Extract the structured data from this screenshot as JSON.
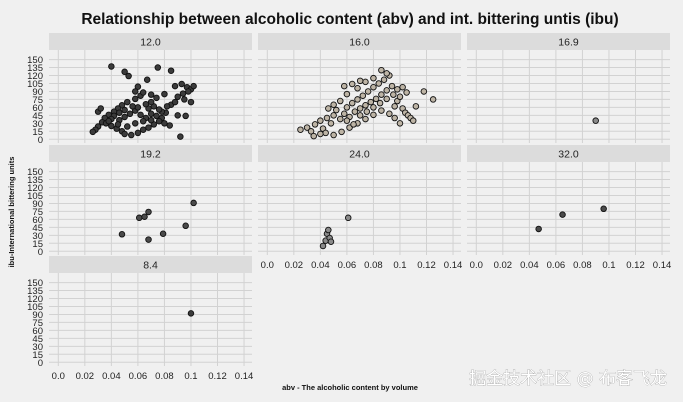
{
  "watermark": "掘金技术社区 @ 布客飞龙",
  "chart_data": {
    "type": "scatter",
    "title": "Relationship between alcoholic content (abv) and int. bittering untis (ibu)",
    "xlabel": "abv - The alcoholic content by volume",
    "ylabel": "ibu-International bittering units",
    "xlim": [
      -0.007,
      0.146
    ],
    "ylim": [
      -7,
      168
    ],
    "xticks": [
      0.0,
      0.02,
      0.04,
      0.06,
      0.08,
      0.1,
      0.12,
      0.14
    ],
    "xtick_labels": [
      "0.0",
      "0.02",
      "0.04",
      "0.06",
      "0.08",
      "0.1",
      "0.12",
      "0.14"
    ],
    "yticks": [
      0,
      15,
      30,
      45,
      60,
      75,
      90,
      105,
      120,
      135,
      150
    ],
    "ytick_labels": [
      "0",
      "15",
      "30",
      "45",
      "60",
      "75",
      "90",
      "105",
      "120",
      "135",
      "150"
    ],
    "grid": true,
    "facets": [
      {
        "label": "12.0",
        "color": "#3b3b3b",
        "points": [
          [
            0.04,
            137
          ],
          [
            0.05,
            127
          ],
          [
            0.053,
            119
          ],
          [
            0.06,
            99
          ],
          [
            0.067,
            112
          ],
          [
            0.075,
            135
          ],
          [
            0.085,
            129
          ],
          [
            0.088,
            100
          ],
          [
            0.093,
            104
          ],
          [
            0.097,
            98
          ],
          [
            0.1,
            94
          ],
          [
            0.102,
            100
          ],
          [
            0.08,
            85
          ],
          [
            0.09,
            80
          ],
          [
            0.095,
            75
          ],
          [
            0.1,
            70
          ],
          [
            0.085,
            65
          ],
          [
            0.09,
            45
          ],
          [
            0.096,
            44
          ],
          [
            0.092,
            5
          ],
          [
            0.081,
            50
          ],
          [
            0.078,
            40
          ],
          [
            0.072,
            62
          ],
          [
            0.068,
            58
          ],
          [
            0.062,
            82
          ],
          [
            0.058,
            76
          ],
          [
            0.052,
            70
          ],
          [
            0.048,
            64
          ],
          [
            0.045,
            58
          ],
          [
            0.042,
            52
          ],
          [
            0.038,
            46
          ],
          [
            0.035,
            40
          ],
          [
            0.033,
            32
          ],
          [
            0.03,
            24
          ],
          [
            0.028,
            18
          ],
          [
            0.026,
            14
          ],
          [
            0.03,
            52
          ],
          [
            0.032,
            58
          ],
          [
            0.036,
            30
          ],
          [
            0.04,
            25
          ],
          [
            0.044,
            20
          ],
          [
            0.048,
            15
          ],
          [
            0.05,
            10
          ],
          [
            0.055,
            8
          ],
          [
            0.06,
            12
          ],
          [
            0.064,
            18
          ],
          [
            0.068,
            22
          ],
          [
            0.072,
            28
          ],
          [
            0.076,
            34
          ],
          [
            0.08,
            30
          ],
          [
            0.084,
            26
          ],
          [
            0.046,
            36
          ],
          [
            0.05,
            42
          ],
          [
            0.054,
            48
          ],
          [
            0.058,
            54
          ],
          [
            0.062,
            46
          ],
          [
            0.066,
            40
          ],
          [
            0.07,
            36
          ],
          [
            0.074,
            44
          ],
          [
            0.078,
            52
          ],
          [
            0.07,
            70
          ],
          [
            0.074,
            78
          ],
          [
            0.066,
            66
          ],
          [
            0.06,
            60
          ],
          [
            0.056,
            62
          ],
          [
            0.05,
            55
          ],
          [
            0.046,
            50
          ],
          [
            0.042,
            44
          ],
          [
            0.04,
            38
          ],
          [
            0.038,
            34
          ],
          [
            0.045,
            28
          ],
          [
            0.052,
            24
          ],
          [
            0.058,
            30
          ],
          [
            0.064,
            34
          ],
          [
            0.07,
            48
          ],
          [
            0.076,
            56
          ],
          [
            0.082,
            62
          ],
          [
            0.088,
            70
          ],
          [
            0.094,
            86
          ],
          [
            0.098,
            90
          ],
          [
            0.058,
            90
          ],
          [
            0.064,
            88
          ],
          [
            0.07,
            84
          ]
        ]
      },
      {
        "label": "16.0",
        "color": "#bdb4a5",
        "points": [
          [
            0.025,
            18
          ],
          [
            0.03,
            22
          ],
          [
            0.033,
            15
          ],
          [
            0.036,
            28
          ],
          [
            0.04,
            35
          ],
          [
            0.042,
            20
          ],
          [
            0.045,
            40
          ],
          [
            0.048,
            30
          ],
          [
            0.05,
            45
          ],
          [
            0.052,
            55
          ],
          [
            0.055,
            38
          ],
          [
            0.058,
            48
          ],
          [
            0.06,
            60
          ],
          [
            0.062,
            42
          ],
          [
            0.064,
            68
          ],
          [
            0.066,
            52
          ],
          [
            0.068,
            75
          ],
          [
            0.07,
            58
          ],
          [
            0.072,
            82
          ],
          [
            0.074,
            64
          ],
          [
            0.076,
            90
          ],
          [
            0.078,
            70
          ],
          [
            0.08,
            98
          ],
          [
            0.082,
            76
          ],
          [
            0.084,
            105
          ],
          [
            0.086,
            84
          ],
          [
            0.088,
            112
          ],
          [
            0.09,
            92
          ],
          [
            0.092,
            120
          ],
          [
            0.094,
            100
          ],
          [
            0.096,
            62
          ],
          [
            0.098,
            72
          ],
          [
            0.1,
            80
          ],
          [
            0.102,
            58
          ],
          [
            0.104,
            50
          ],
          [
            0.106,
            45
          ],
          [
            0.108,
            40
          ],
          [
            0.11,
            35
          ],
          [
            0.112,
            62
          ],
          [
            0.118,
            90
          ],
          [
            0.125,
            75
          ],
          [
            0.086,
            130
          ],
          [
            0.09,
            124
          ],
          [
            0.08,
            115
          ],
          [
            0.074,
            108
          ],
          [
            0.068,
            96
          ],
          [
            0.06,
            85
          ],
          [
            0.055,
            72
          ],
          [
            0.05,
            65
          ],
          [
            0.046,
            58
          ],
          [
            0.044,
            12
          ],
          [
            0.05,
            8
          ],
          [
            0.056,
            14
          ],
          [
            0.062,
            22
          ],
          [
            0.068,
            30
          ],
          [
            0.074,
            38
          ],
          [
            0.08,
            46
          ],
          [
            0.086,
            54
          ],
          [
            0.092,
            48
          ],
          [
            0.096,
            40
          ],
          [
            0.1,
            30
          ],
          [
            0.06,
            35
          ],
          [
            0.065,
            28
          ],
          [
            0.07,
            45
          ],
          [
            0.075,
            52
          ],
          [
            0.08,
            60
          ],
          [
            0.085,
            68
          ],
          [
            0.09,
            76
          ],
          [
            0.095,
            84
          ],
          [
            0.098,
            94
          ],
          [
            0.102,
            98
          ],
          [
            0.105,
            88
          ],
          [
            0.04,
            10
          ],
          [
            0.035,
            6
          ],
          [
            0.058,
            100
          ],
          [
            0.064,
            104
          ],
          [
            0.07,
            110
          ]
        ]
      },
      {
        "label": "16.9",
        "color": "#8a8a8a",
        "points": [
          [
            0.09,
            35
          ]
        ]
      },
      {
        "label": "19.2",
        "color": "#4a4a4a",
        "points": [
          [
            0.048,
            32
          ],
          [
            0.061,
            63
          ],
          [
            0.065,
            65
          ],
          [
            0.068,
            74
          ],
          [
            0.068,
            22
          ],
          [
            0.079,
            33
          ],
          [
            0.096,
            48
          ],
          [
            0.102,
            91
          ]
        ]
      },
      {
        "label": "24.0",
        "color": "#8a8a8a",
        "points": [
          [
            0.042,
            10
          ],
          [
            0.044,
            20
          ],
          [
            0.045,
            33
          ],
          [
            0.046,
            40
          ],
          [
            0.047,
            25
          ],
          [
            0.048,
            18
          ],
          [
            0.061,
            63
          ]
        ]
      },
      {
        "label": "32.0",
        "color": "#4a4a4a",
        "points": [
          [
            0.047,
            42
          ],
          [
            0.065,
            69
          ],
          [
            0.096,
            80
          ]
        ]
      },
      {
        "label": "8.4",
        "color": "#3b3b3b",
        "points": [
          [
            0.1,
            92
          ]
        ]
      }
    ]
  }
}
